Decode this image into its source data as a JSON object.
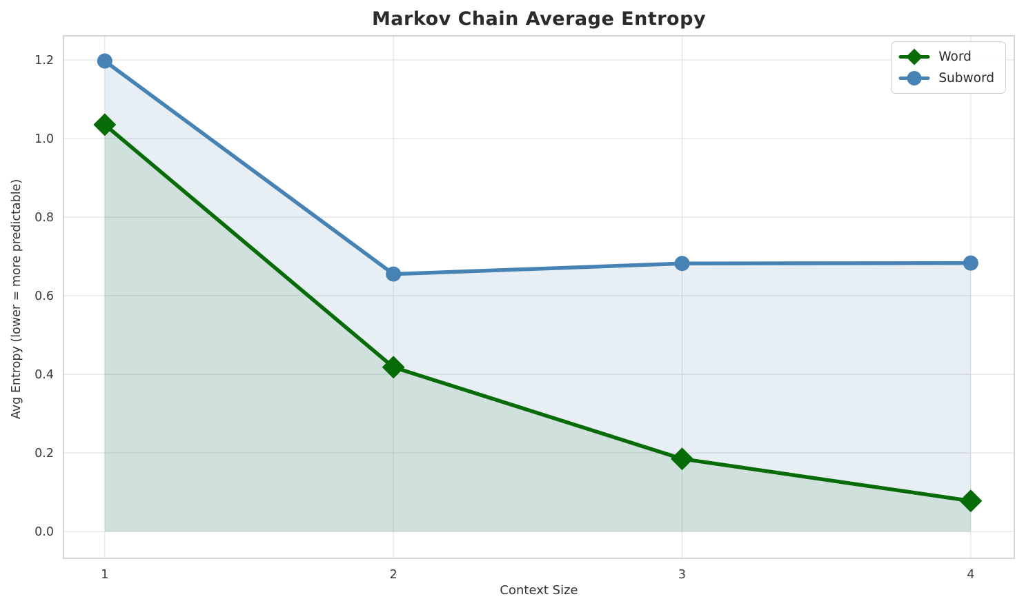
{
  "chart_data": {
    "type": "line",
    "title": "Markov Chain Average Entropy",
    "xlabel": "Context Size",
    "ylabel": "Avg Entropy (lower = more predictable)",
    "x": [
      1,
      2,
      3,
      4
    ],
    "xticks": [
      "1",
      "2",
      "3",
      "4"
    ],
    "yticks": [
      0.0,
      0.2,
      0.4,
      0.6,
      0.8,
      1.0,
      1.2
    ],
    "xlim": [
      0.857,
      4.151
    ],
    "ylim": [
      -0.068,
      1.261
    ],
    "grid": true,
    "legend_position": "upper right",
    "area_baseline": 0,
    "series": [
      {
        "name": "Word",
        "marker": "diamond",
        "color": "#076C07",
        "fill": "rgba(7, 108, 7, 0.10)",
        "values": [
          1.035,
          0.418,
          0.185,
          0.078
        ]
      },
      {
        "name": "Subword",
        "marker": "circle",
        "color": "#4682B4",
        "fill": "rgba(70, 130, 180, 0.13)",
        "values": [
          1.197,
          0.655,
          0.682,
          0.683
        ]
      }
    ],
    "colors": {
      "title": "#2b2b2b",
      "tick_label": "#3a3a3a",
      "grid": "#e4e4e4",
      "spine": "#cbcbcb",
      "background": "#ffffff"
    }
  }
}
